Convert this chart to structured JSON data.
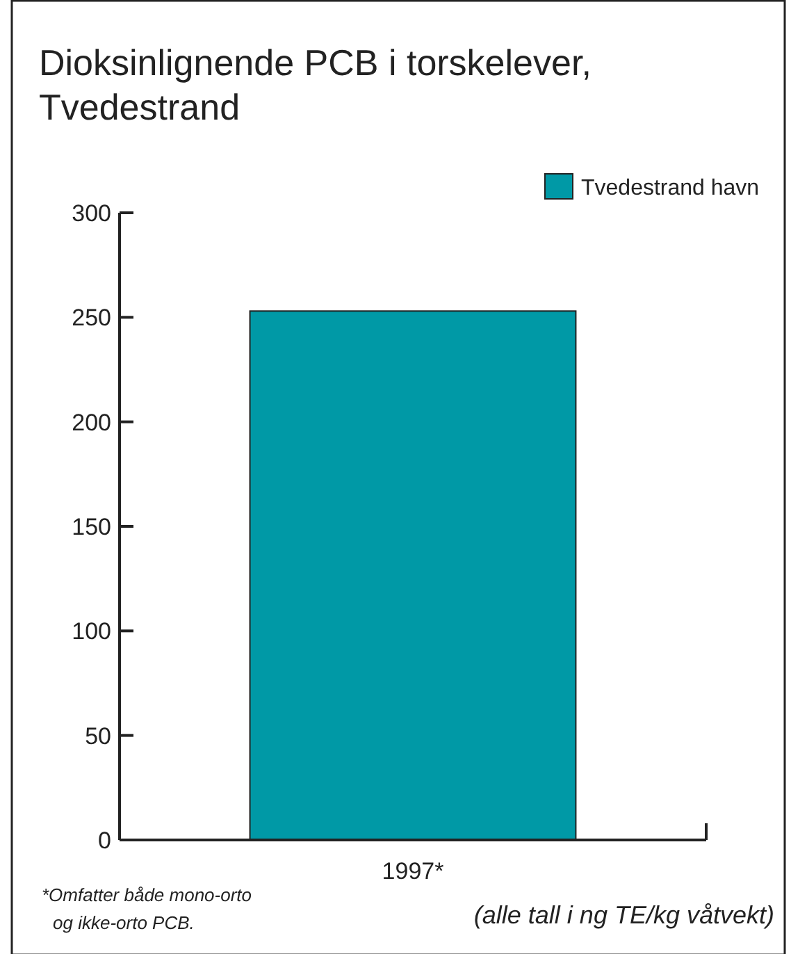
{
  "chart_data": {
    "type": "bar",
    "title": "Dioksinlignende PCB i torskelever, Tvedestrand",
    "categories": [
      "1997*"
    ],
    "series": [
      {
        "name": "Tvedestrand havn",
        "color": "#0099a6",
        "values": [
          253
        ]
      }
    ],
    "ylim": [
      0,
      300
    ],
    "yticks": [
      0,
      50,
      100,
      150,
      200,
      250,
      300
    ],
    "grid": false,
    "legend": "top right",
    "annotations": [
      "*Omfatter både mono-orto og ikke-orto PCB.",
      "(alle tall i ng TE/kg våtvekt)"
    ]
  }
}
